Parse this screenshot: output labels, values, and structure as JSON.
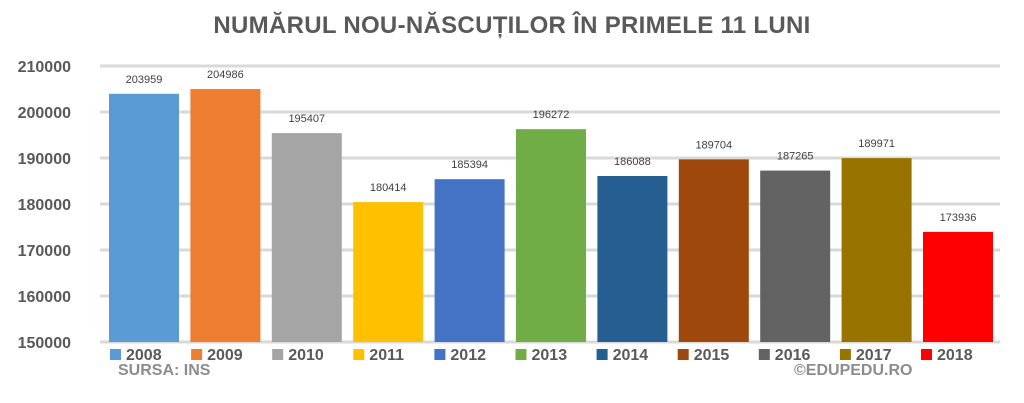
{
  "chart_data": {
    "type": "bar",
    "title": "NUMĂRUL NOU-NĂSCUȚILOR ÎN PRIMELE 11 LUNI",
    "xlabel": "",
    "ylabel": "",
    "ylim": [
      150000,
      210000
    ],
    "yticks": [
      210000,
      200000,
      190000,
      180000,
      170000,
      160000,
      150000
    ],
    "categories": [
      "2008",
      "2009",
      "2010",
      "2011",
      "2012",
      "2013",
      "2014",
      "2015",
      "2016",
      "2017",
      "2018"
    ],
    "values": [
      203959,
      204986,
      195407,
      180414,
      185394,
      196272,
      186088,
      189704,
      187265,
      189971,
      173936
    ],
    "colors": [
      "#5b9bd5",
      "#ed7d31",
      "#a5a5a5",
      "#ffc000",
      "#4472c4",
      "#70ad47",
      "#255e91",
      "#9e480e",
      "#636363",
      "#997300",
      "#ff0000"
    ],
    "grid": true,
    "legend": "bottom"
  },
  "footer": {
    "source": "SURSA: INS",
    "credit": "©EDUPEDU.RO"
  }
}
